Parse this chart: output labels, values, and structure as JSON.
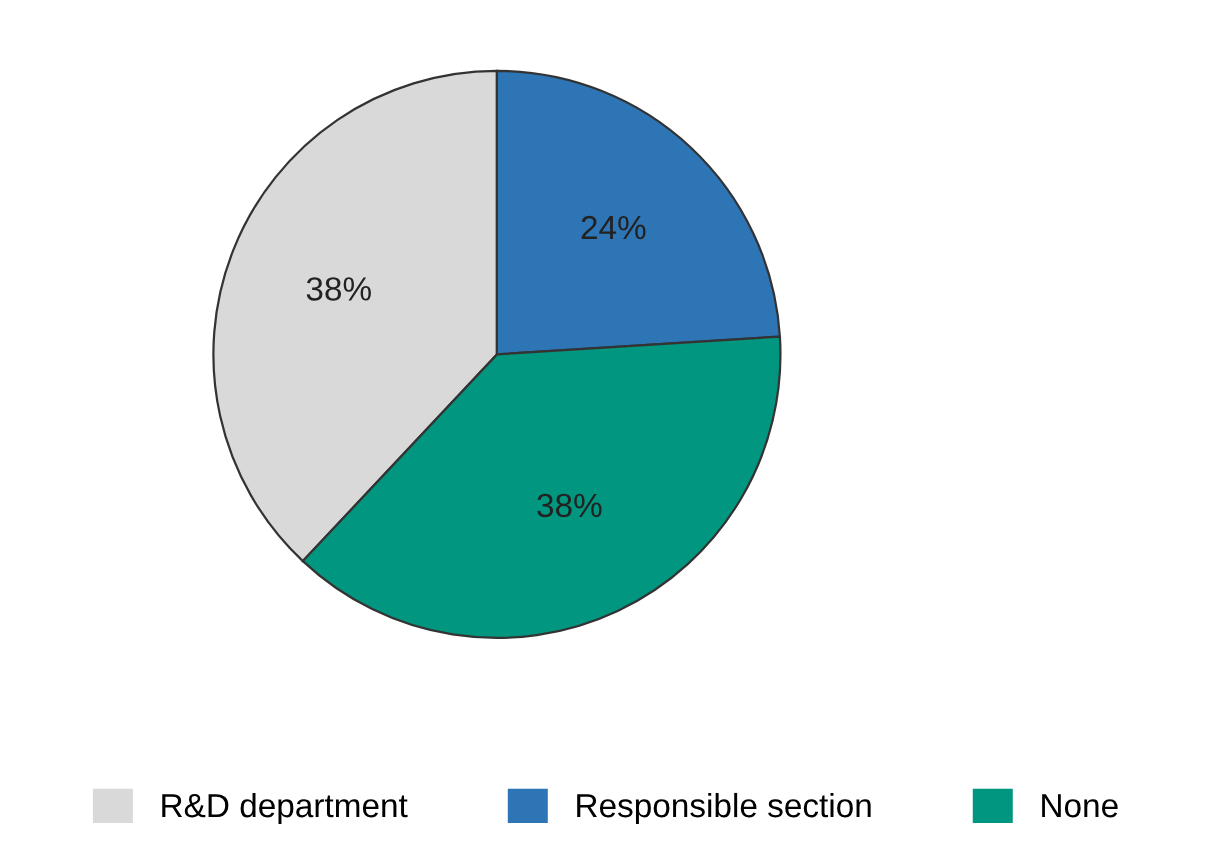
{
  "chart_data": {
    "type": "pie",
    "categories": [
      "R&D department",
      "Responsible section",
      "None"
    ],
    "values": [
      38,
      24,
      38
    ],
    "colors": [
      "#d9d9d9",
      "#2e75b6",
      "#00967f"
    ],
    "value_labels": [
      "38%",
      "24%",
      "38%"
    ],
    "legend": "bottom"
  }
}
